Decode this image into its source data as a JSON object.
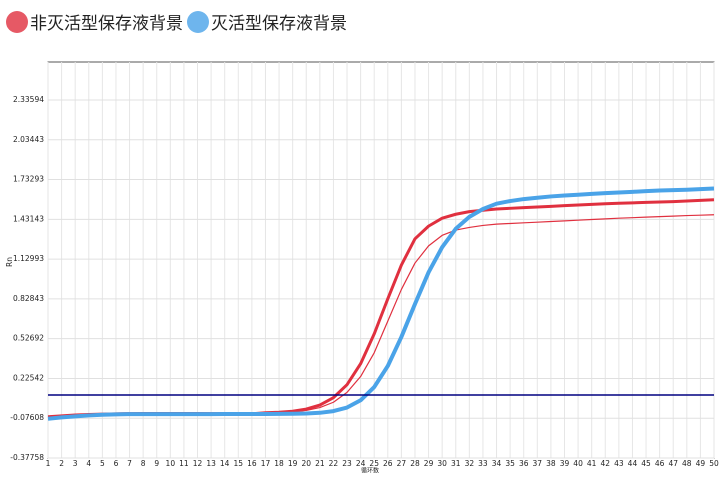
{
  "chart_data": {
    "type": "line",
    "x_label": "循环数",
    "y_label": "Rn",
    "x": [
      1,
      2,
      3,
      4,
      5,
      6,
      7,
      8,
      9,
      10,
      11,
      12,
      13,
      14,
      15,
      16,
      17,
      18,
      19,
      20,
      21,
      22,
      23,
      24,
      25,
      26,
      27,
      28,
      29,
      30,
      31,
      32,
      33,
      34,
      35,
      36,
      37,
      38,
      39,
      40,
      41,
      42,
      43,
      44,
      45,
      46,
      47,
      48,
      49,
      50
    ],
    "xlim": [
      1,
      50
    ],
    "xticks": [
      1,
      2,
      3,
      4,
      5,
      6,
      7,
      8,
      9,
      10,
      11,
      12,
      13,
      14,
      15,
      16,
      17,
      18,
      19,
      20,
      21,
      22,
      23,
      24,
      25,
      26,
      27,
      28,
      29,
      30,
      31,
      32,
      33,
      34,
      35,
      36,
      37,
      38,
      39,
      40,
      41,
      42,
      43,
      44,
      45,
      46,
      47,
      48,
      49,
      50
    ],
    "ylim": [
      -0.37758,
      2.624
    ],
    "yticks": [
      -0.37758,
      -0.07608,
      0.22542,
      0.52692,
      0.82843,
      1.12993,
      1.43143,
      1.73293,
      2.03443,
      2.33594
    ],
    "grid": true,
    "threshold": 0.1,
    "threshold_color": "#000080",
    "series": [
      {
        "name": "非灭活型保存液背景",
        "color": "#e0303f",
        "width": 3,
        "values": [
          -0.065,
          -0.058,
          -0.052,
          -0.048,
          -0.045,
          -0.043,
          -0.041,
          -0.04,
          -0.04,
          -0.04,
          -0.04,
          -0.04,
          -0.041,
          -0.041,
          -0.042,
          -0.042,
          -0.035,
          -0.031,
          -0.023,
          -0.007,
          0.024,
          0.08,
          0.178,
          0.337,
          0.563,
          0.829,
          1.085,
          1.284,
          1.38,
          1.44,
          1.47,
          1.49,
          1.5,
          1.51,
          1.515,
          1.52,
          1.525,
          1.53,
          1.535,
          1.54,
          1.545,
          1.55,
          1.553,
          1.556,
          1.56,
          1.563,
          1.566,
          1.57,
          1.575,
          1.58
        ]
      },
      {
        "name": "非灭活型保存液背景",
        "color": "#e0303f",
        "width": 1.2,
        "values": [
          -0.065,
          -0.058,
          -0.052,
          -0.048,
          -0.045,
          -0.043,
          -0.041,
          -0.04,
          -0.04,
          -0.04,
          -0.04,
          -0.04,
          -0.041,
          -0.041,
          -0.042,
          -0.042,
          -0.037,
          -0.034,
          -0.028,
          -0.017,
          0.005,
          0.045,
          0.12,
          0.24,
          0.42,
          0.66,
          0.9,
          1.1,
          1.23,
          1.31,
          1.35,
          1.37,
          1.385,
          1.395,
          1.4,
          1.405,
          1.41,
          1.415,
          1.42,
          1.425,
          1.43,
          1.435,
          1.44,
          1.444,
          1.448,
          1.452,
          1.456,
          1.46,
          1.463,
          1.466
        ]
      },
      {
        "name": "灭活型保存液背景",
        "color": "#4aa3e8",
        "width": 4,
        "values": [
          -0.08,
          -0.07,
          -0.062,
          -0.055,
          -0.05,
          -0.047,
          -0.045,
          -0.045,
          -0.045,
          -0.045,
          -0.045,
          -0.045,
          -0.045,
          -0.044,
          -0.044,
          -0.044,
          -0.044,
          -0.043,
          -0.042,
          -0.04,
          -0.035,
          -0.022,
          0.005,
          0.06,
          0.16,
          0.32,
          0.54,
          0.79,
          1.03,
          1.22,
          1.36,
          1.45,
          1.51,
          1.55,
          1.57,
          1.585,
          1.595,
          1.605,
          1.612,
          1.618,
          1.624,
          1.63,
          1.635,
          1.64,
          1.645,
          1.65,
          1.653,
          1.656,
          1.66,
          1.665
        ]
      }
    ]
  }
}
